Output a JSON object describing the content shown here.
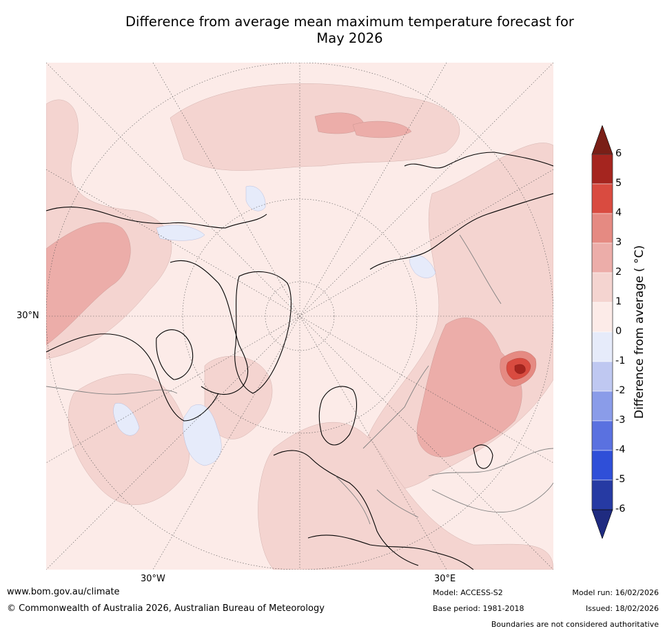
{
  "title": {
    "line1": "Difference from average mean maximum temperature forecast for",
    "line2": "May 2026"
  },
  "map": {
    "lat_label": "30°N",
    "lon_labels": [
      "30°W",
      "30°E"
    ],
    "colors": {
      "land_outline": "#000000",
      "boundary": "#808080",
      "grid": "#555555",
      "anom_0_1": "#fcebe8",
      "anom_1_2": "#f4d4d0",
      "anom_2_3": "#ecada9",
      "anom_3_4": "#e58a82",
      "anom_4_5": "#d94b40",
      "anom_5_6": "#a5251f",
      "anom_neg_1_0": "#e6ebfa"
    }
  },
  "colorbar": {
    "label": "Difference from average ( °C)",
    "ticks": [
      "6",
      "5",
      "4",
      "3",
      "2",
      "1",
      "0",
      "-1",
      "-2",
      "-3",
      "-4",
      "-5",
      "-6"
    ],
    "colors": [
      "#7a1f17",
      "#a5251f",
      "#d94b40",
      "#e58a82",
      "#ecada9",
      "#f4d4d0",
      "#fcebe8",
      "#e6ebfa",
      "#bfc8f1",
      "#8a9ce9",
      "#5a71e0",
      "#2f4fd8",
      "#263aa3",
      "#1f2b80"
    ]
  },
  "footer": {
    "website": "www.bom.gov.au/climate",
    "copyright": "© Commonwealth of Australia 2026, Australian Bureau of Meteorology",
    "model": "Model: ACCESS-S2",
    "base_period": "Base period: 1981-2018",
    "model_run": "Model run: 16/02/2026",
    "issued": "Issued: 18/02/2026",
    "disclaimer": "Boundaries are not considered authoritative"
  }
}
